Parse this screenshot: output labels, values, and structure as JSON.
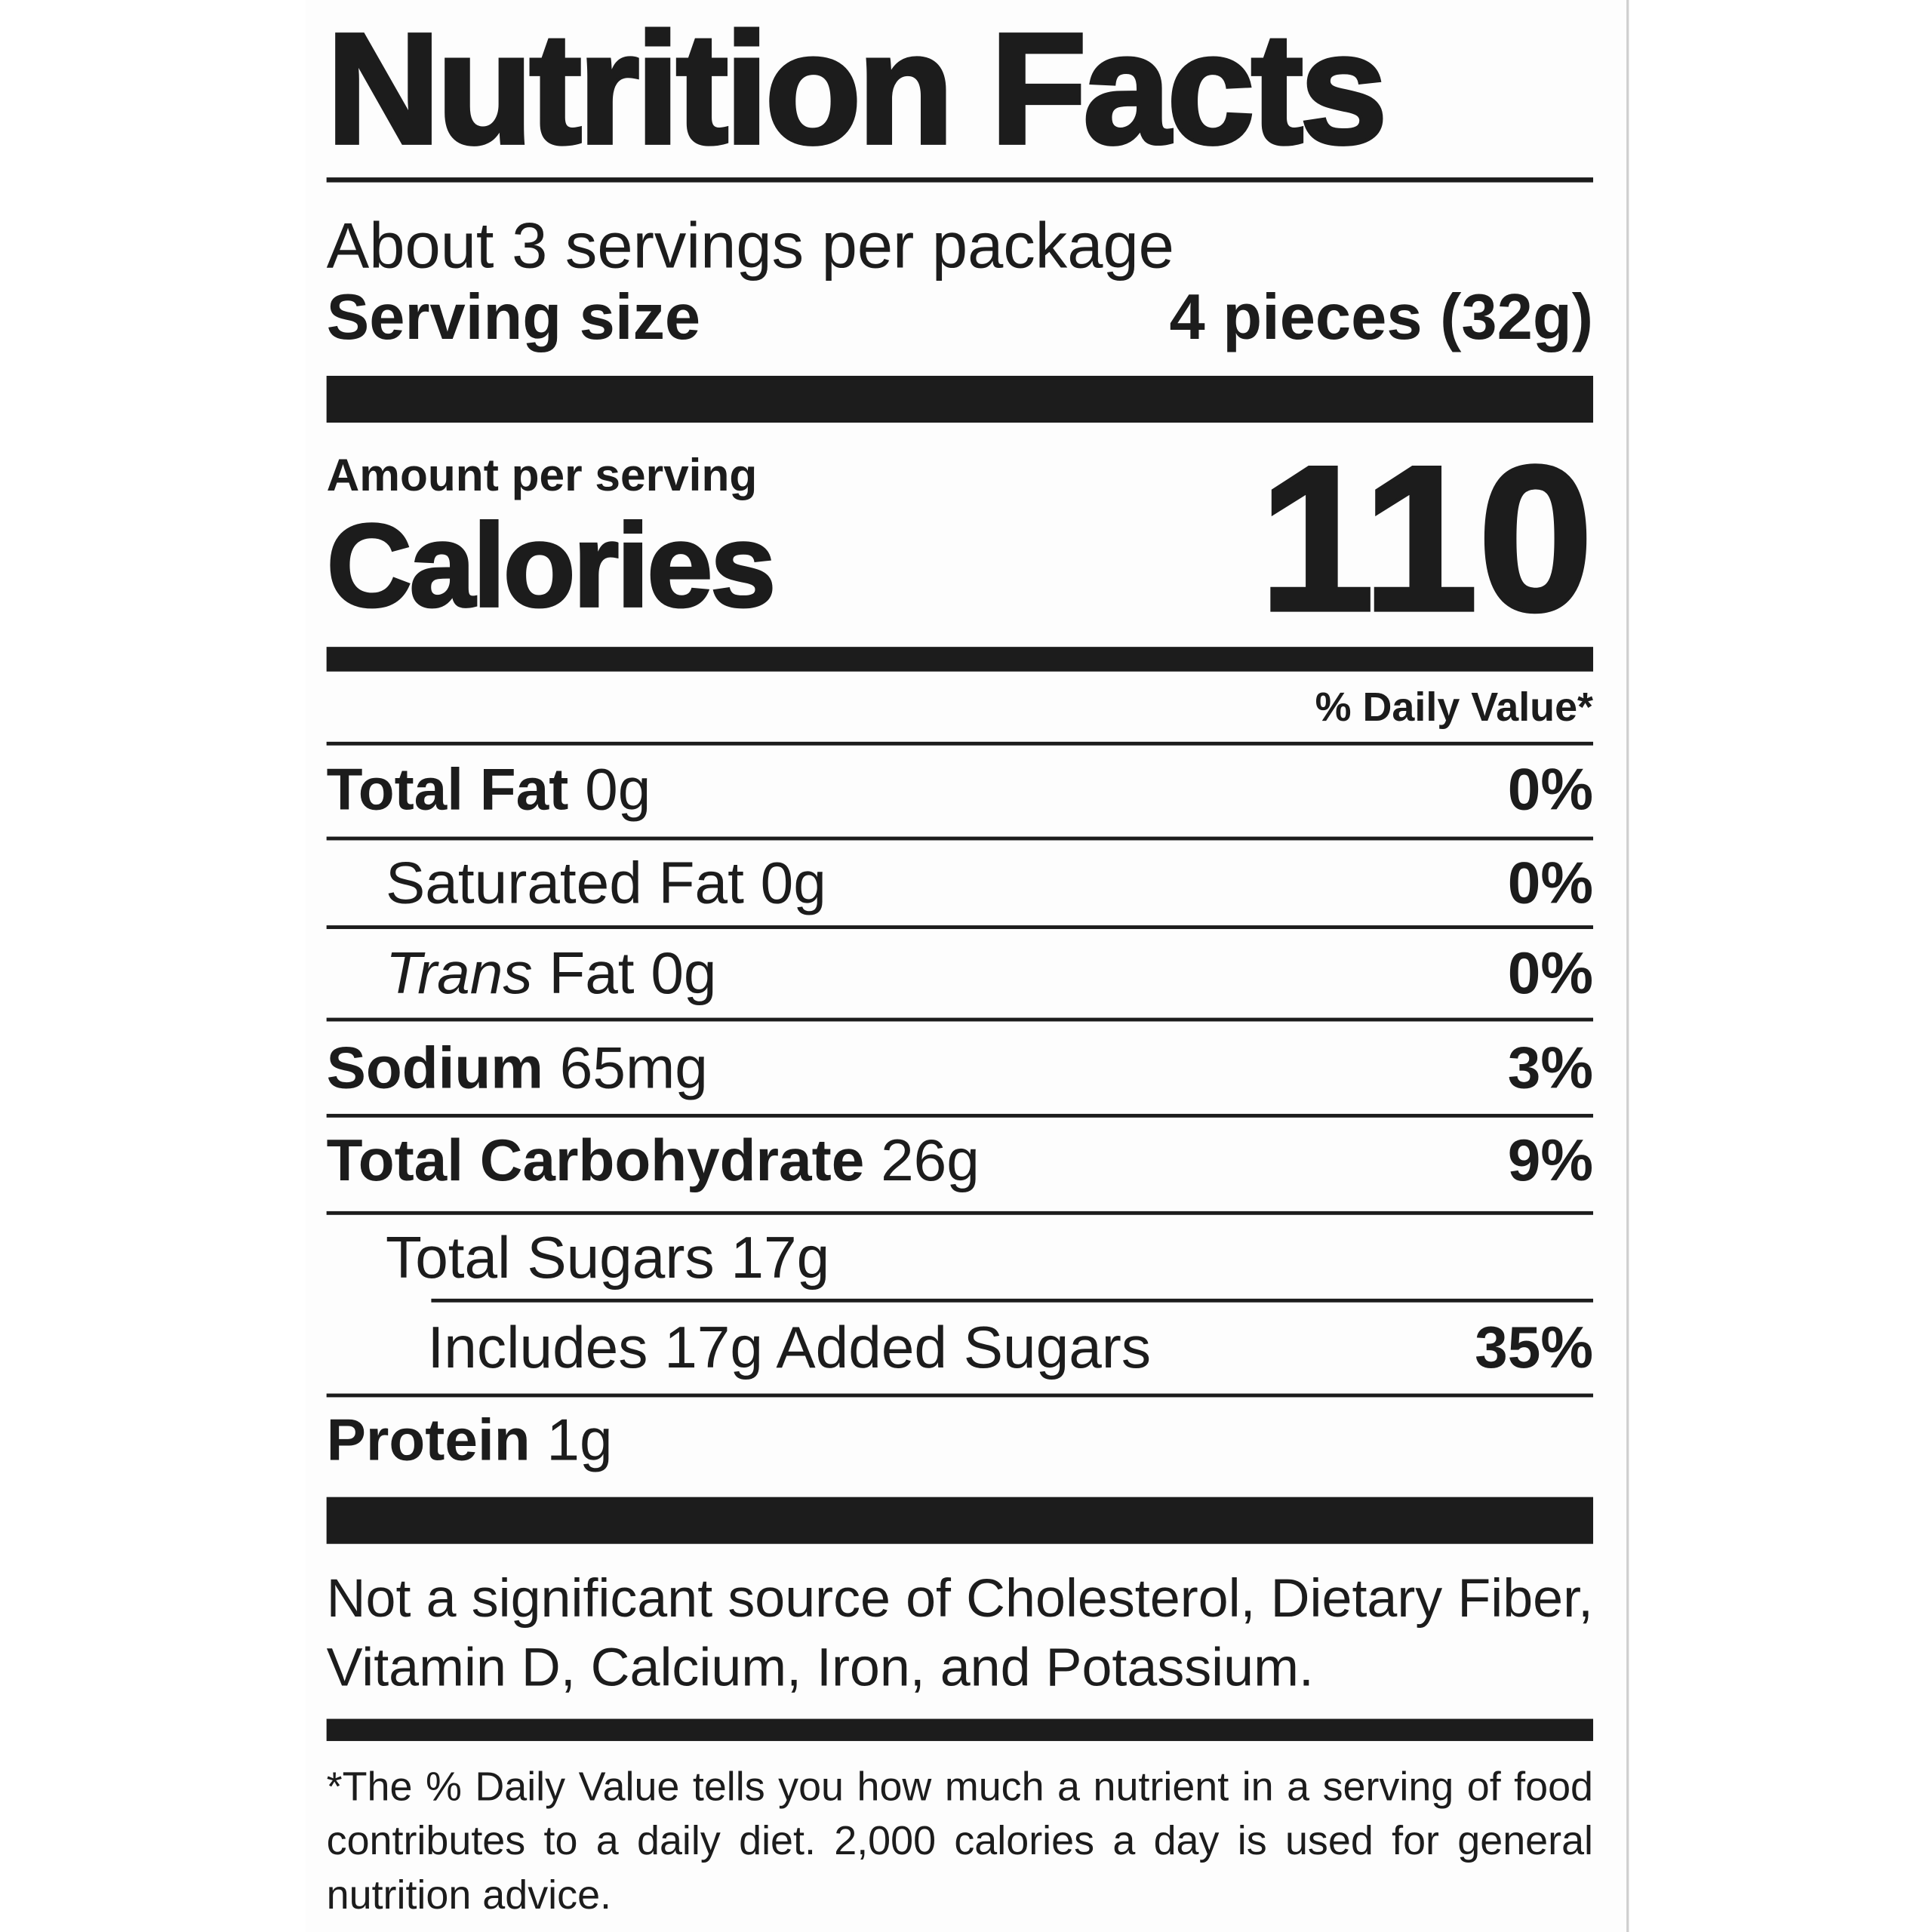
{
  "label": {
    "title": "Nutrition Facts",
    "servings_per_package": "About 3 servings per package",
    "serving_size_label": "Serving size",
    "serving_size_value": "4 pieces (32g)",
    "amount_per_serving": "Amount per serving",
    "calories_label": "Calories",
    "calories_value": "110",
    "daily_value_header": "% Daily Value*",
    "nutrients": [
      {
        "name": "Total Fat",
        "amount": "0g",
        "dv": "0%"
      },
      {
        "name": "Saturated Fat",
        "amount": "0g",
        "dv": "0%"
      },
      {
        "name": "Trans",
        "name_suffix": "Fat",
        "amount": "0g",
        "dv": "0%"
      },
      {
        "name": "Sodium",
        "amount": "65mg",
        "dv": "3%"
      },
      {
        "name": "Total Carbohydrate",
        "amount": "26g",
        "dv": "9%"
      },
      {
        "name": "Total Sugars",
        "amount": "17g",
        "dv": ""
      },
      {
        "name": "Includes 17g Added Sugars",
        "amount": "",
        "dv": "35%"
      },
      {
        "name": "Protein",
        "amount": "1g",
        "dv": ""
      }
    ],
    "not_significant": "Not a significant source of Cholesterol, Dietary Fiber, Vitamin D, Calcium, Iron, and Potassium.",
    "footnote": "*The % Daily Value tells you how much a nutrient in a serving of food contributes to a daily diet. 2,000 calories a day is used for general nutrition advice."
  }
}
